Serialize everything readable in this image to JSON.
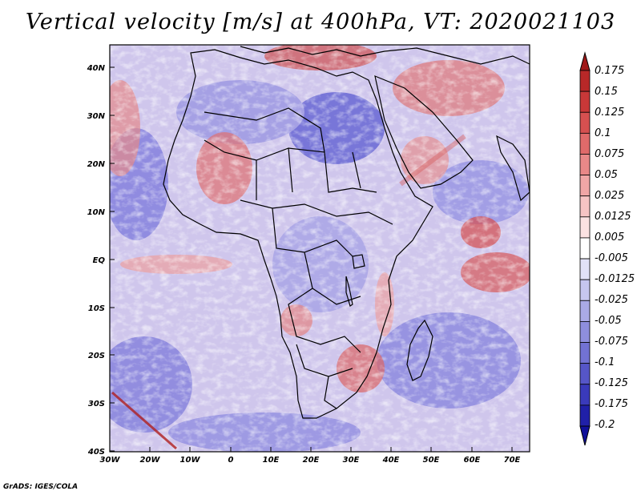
{
  "title": "Vertical velocity [m/s] at 400hPa, VT: 2020021103",
  "credit": "GrADS: IGES/COLA",
  "lat_labels": [
    "40N",
    "30N",
    "20N",
    "10N",
    "EQ",
    "10S",
    "20S",
    "30S",
    "40S"
  ],
  "lon_labels": [
    "30W",
    "20W",
    "10W",
    "0",
    "10E",
    "20E",
    "30E",
    "40E",
    "50E",
    "60E",
    "70E"
  ],
  "colorbar": {
    "labels": [
      "0.175",
      "0.15",
      "0.125",
      "0.1",
      "0.075",
      "0.05",
      "0.025",
      "0.0125",
      "0.005",
      "-0.005",
      "-0.0125",
      "-0.025",
      "-0.05",
      "-0.075",
      "-0.1",
      "-0.125",
      "-0.175",
      "-0.2"
    ],
    "colors": [
      "#a01818",
      "#b82828",
      "#c93838",
      "#d65050",
      "#e06a6a",
      "#e98888",
      "#f0a6a6",
      "#f6c4c4",
      "#fbe2e2",
      "#ffffff",
      "#e2e2f7",
      "#c6c6ef",
      "#aaaae6",
      "#8e8edd",
      "#7272d3",
      "#5656c8",
      "#3a3abb",
      "#2020a8",
      "#10109a"
    ]
  },
  "colors": {
    "upward": "#c83232",
    "downward": "#3c3cc4",
    "coast": "#000000"
  }
}
